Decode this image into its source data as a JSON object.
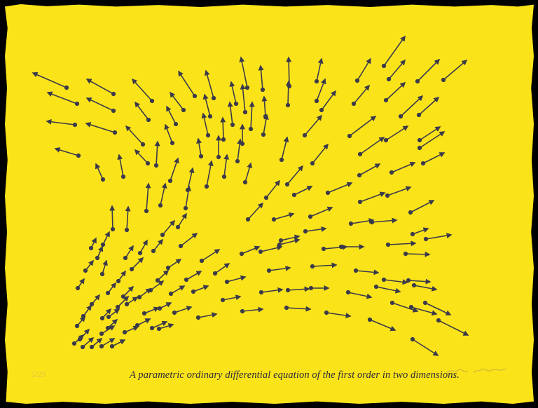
{
  "artwork": {
    "paper_color": "#fbe31a",
    "border_color": "#000000",
    "arrow_color": "#3a3a4a",
    "caption": "A parametric ordinary differential equation of the first order in two dimensions.",
    "edition": "5/25"
  }
}
